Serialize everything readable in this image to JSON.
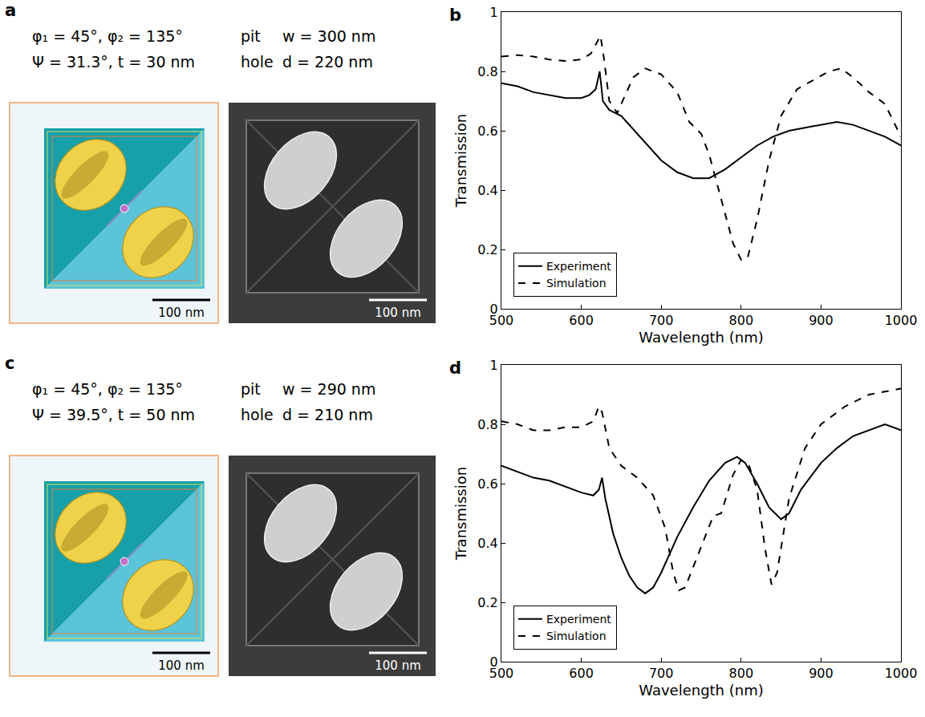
{
  "panels": [
    {
      "label": "a",
      "params": [
        "φ₁ = 45°, φ₂ = 135°",
        "Ψ = 31.3°, t = 30 nm"
      ],
      "rows": [
        [
          "pit",
          "w = 300 nm"
        ],
        [
          "hole",
          "d = 220 nm"
        ]
      ],
      "scale_bars": [
        "100 nm",
        "100 nm"
      ]
    },
    {
      "label": "c",
      "params": [
        "φ₁ = 45°, φ₂ = 135°",
        "Ψ = 39.5°, t = 50 nm"
      ],
      "rows": [
        [
          "pit",
          "w = 290 nm"
        ],
        [
          "hole",
          "d = 210 nm"
        ]
      ],
      "scale_bars": [
        "100 nm",
        "100 nm"
      ]
    }
  ],
  "chart_data": [
    {
      "type": "line",
      "label": "b",
      "x_label": "Wavelength (nm)",
      "y_label": "Transmission",
      "xlim": [
        500,
        1000
      ],
      "xticks": [
        500,
        600,
        700,
        800,
        900,
        1000
      ],
      "ylim": [
        0,
        1
      ],
      "yticks": [
        0,
        0.2,
        0.4,
        0.6,
        0.8,
        1
      ],
      "legend": "lower left",
      "series": [
        {
          "name": "Experiment",
          "color": "#000000",
          "line_style": "solid",
          "x": [
            500,
            520,
            540,
            560,
            580,
            600,
            610,
            618,
            623,
            627,
            635,
            650,
            660,
            680,
            700,
            720,
            740,
            760,
            780,
            800,
            820,
            840,
            860,
            880,
            900,
            920,
            940,
            960,
            980,
            1000
          ],
          "values": [
            0.76,
            0.75,
            0.73,
            0.72,
            0.71,
            0.71,
            0.72,
            0.74,
            0.8,
            0.7,
            0.67,
            0.65,
            0.62,
            0.56,
            0.5,
            0.46,
            0.44,
            0.44,
            0.47,
            0.51,
            0.55,
            0.58,
            0.6,
            0.61,
            0.62,
            0.63,
            0.62,
            0.6,
            0.58,
            0.55
          ]
        },
        {
          "name": "Simulation",
          "color": "#000000",
          "line_style": "dashed",
          "x": [
            500,
            520,
            540,
            560,
            580,
            600,
            612,
            620,
            624,
            628,
            635,
            645,
            655,
            665,
            680,
            700,
            720,
            735,
            750,
            760,
            775,
            790,
            800,
            808,
            820,
            835,
            850,
            870,
            890,
            910,
            925,
            940,
            960,
            980,
            1000
          ],
          "values": [
            0.85,
            0.855,
            0.85,
            0.84,
            0.835,
            0.84,
            0.86,
            0.9,
            0.92,
            0.85,
            0.7,
            0.66,
            0.72,
            0.78,
            0.81,
            0.79,
            0.73,
            0.63,
            0.59,
            0.52,
            0.37,
            0.22,
            0.165,
            0.17,
            0.3,
            0.5,
            0.65,
            0.74,
            0.77,
            0.8,
            0.81,
            0.78,
            0.73,
            0.69,
            0.58
          ]
        }
      ]
    },
    {
      "type": "line",
      "label": "d",
      "x_label": "Wavelength (nm)",
      "y_label": "Transmission",
      "xlim": [
        500,
        1000
      ],
      "xticks": [
        500,
        600,
        700,
        800,
        900,
        1000
      ],
      "ylim": [
        0,
        1
      ],
      "yticks": [
        0,
        0.2,
        0.4,
        0.6,
        0.8,
        1
      ],
      "legend": "lower left",
      "series": [
        {
          "name": "Experiment",
          "color": "#000000",
          "line_style": "solid",
          "x": [
            500,
            520,
            540,
            560,
            580,
            600,
            615,
            622,
            626,
            630,
            640,
            650,
            660,
            670,
            680,
            690,
            700,
            720,
            740,
            760,
            780,
            795,
            805,
            820,
            835,
            850,
            860,
            875,
            900,
            920,
            940,
            960,
            980,
            1000
          ],
          "values": [
            0.66,
            0.64,
            0.62,
            0.61,
            0.59,
            0.57,
            0.56,
            0.58,
            0.62,
            0.55,
            0.43,
            0.35,
            0.29,
            0.25,
            0.23,
            0.25,
            0.3,
            0.42,
            0.52,
            0.61,
            0.67,
            0.69,
            0.67,
            0.6,
            0.52,
            0.48,
            0.5,
            0.58,
            0.67,
            0.72,
            0.76,
            0.78,
            0.8,
            0.78
          ]
        },
        {
          "name": "Simulation",
          "color": "#000000",
          "line_style": "dashed",
          "x": [
            500,
            520,
            540,
            560,
            580,
            600,
            615,
            622,
            626,
            635,
            650,
            670,
            690,
            705,
            715,
            722,
            730,
            740,
            755,
            765,
            775,
            790,
            800,
            810,
            820,
            830,
            838,
            845,
            860,
            880,
            900,
            930,
            960,
            1000
          ],
          "values": [
            0.81,
            0.8,
            0.78,
            0.78,
            0.79,
            0.79,
            0.81,
            0.86,
            0.84,
            0.72,
            0.66,
            0.62,
            0.56,
            0.45,
            0.3,
            0.24,
            0.25,
            0.32,
            0.42,
            0.49,
            0.5,
            0.63,
            0.68,
            0.66,
            0.58,
            0.38,
            0.26,
            0.3,
            0.55,
            0.72,
            0.8,
            0.86,
            0.9,
            0.92
          ]
        }
      ]
    }
  ]
}
